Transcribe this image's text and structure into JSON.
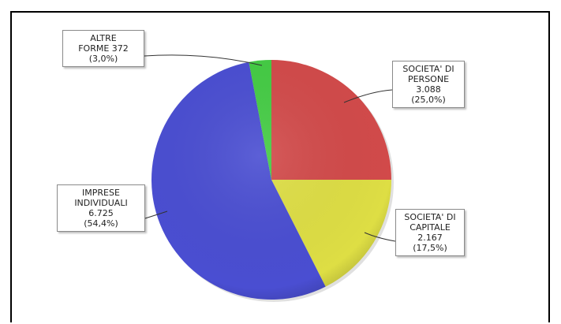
{
  "chart_data": {
    "type": "pie",
    "start_angle_deg": 0,
    "direction": "clockwise",
    "slices": [
      {
        "name": "SOCIETA' DI PERSONE",
        "value": 3088,
        "percent": 25.0,
        "color": "#d24a4a",
        "label_lines": [
          "SOCIETA' DI",
          "PERSONE",
          "3.088",
          "(25,0%)"
        ]
      },
      {
        "name": "SOCIETA' DI CAPITALE",
        "value": 2167,
        "percent": 17.5,
        "color": "#dede44",
        "label_lines": [
          "SOCIETA' DI",
          "CAPITALE",
          "2.167",
          "(17,5%)"
        ]
      },
      {
        "name": "IMPRESE INDIVIDUALI",
        "value": 6725,
        "percent": 54.4,
        "color": "#4a4ed2",
        "label_lines": [
          "IMPRESE",
          "INDIVIDUALI",
          "6.725",
          "(54,4%)"
        ]
      },
      {
        "name": "ALTRE FORME",
        "value": 372,
        "percent": 3.0,
        "color": "#44cc44",
        "label_lines": [
          "ALTRE",
          "FORME 372",
          "(3,0%)"
        ]
      }
    ]
  }
}
